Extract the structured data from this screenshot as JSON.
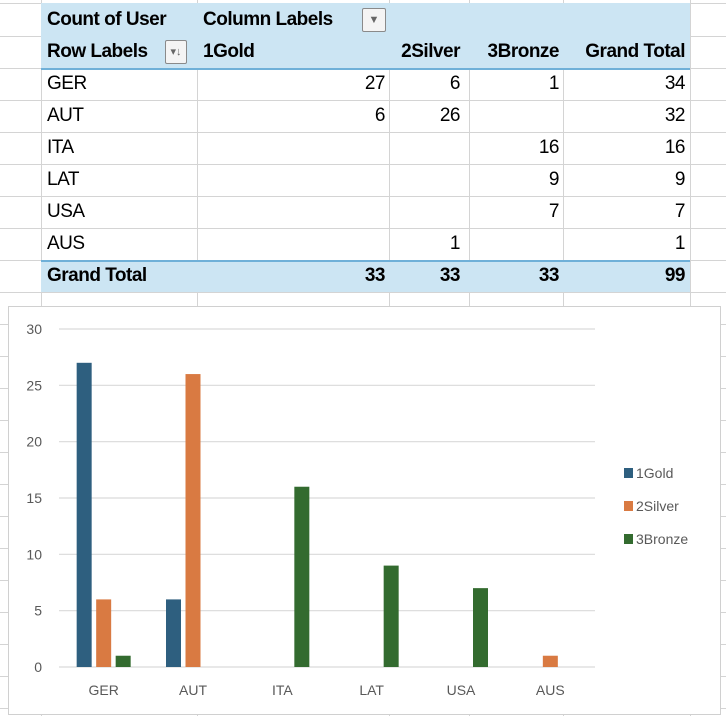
{
  "pivot": {
    "value_field": "Count of User",
    "column_labels": "Column Labels",
    "row_labels": "Row Labels",
    "columns": [
      "1Gold",
      "2Silver",
      "3Bronze",
      "Grand Total"
    ],
    "rows": [
      {
        "label": "GER",
        "values": [
          "27",
          "6",
          "1",
          "34"
        ]
      },
      {
        "label": "AUT",
        "values": [
          "6",
          "26",
          "",
          "32"
        ]
      },
      {
        "label": "ITA",
        "values": [
          "",
          "",
          "16",
          "16"
        ]
      },
      {
        "label": "LAT",
        "values": [
          "",
          "",
          "9",
          "9"
        ]
      },
      {
        "label": "USA",
        "values": [
          "",
          "",
          "7",
          "7"
        ]
      },
      {
        "label": "AUS",
        "values": [
          "",
          "1",
          "",
          "1"
        ]
      }
    ],
    "grand_total": {
      "label": "Grand Total",
      "values": [
        "33",
        "33",
        "33",
        "99"
      ]
    },
    "header_fill": "#cce5f3"
  },
  "chart_data": {
    "type": "bar",
    "categories": [
      "GER",
      "AUT",
      "ITA",
      "LAT",
      "USA",
      "AUS"
    ],
    "series": [
      {
        "name": "1Gold",
        "color": "#2e5f7f",
        "values": [
          27,
          6,
          0,
          0,
          0,
          0
        ]
      },
      {
        "name": "2Silver",
        "color": "#d97a42",
        "values": [
          6,
          26,
          0,
          0,
          0,
          1
        ]
      },
      {
        "name": "3Bronze",
        "color": "#336b2f",
        "values": [
          1,
          0,
          16,
          9,
          7,
          0
        ]
      }
    ],
    "ylim": [
      0,
      30
    ],
    "yticks": [
      0,
      5,
      10,
      15,
      20,
      25,
      30
    ],
    "grid": true,
    "legend": "right"
  }
}
